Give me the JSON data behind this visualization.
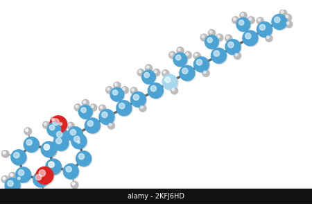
{
  "background_color": "#ffffff",
  "figsize": [
    4.5,
    3.07
  ],
  "dpi": 100,
  "carbon_color": "#4BA3D3",
  "oxygen_color": "#DD2222",
  "hydrogen_color": "#BBBBBB",
  "light_carbon_color": "#A8D8EE",
  "bond_color": "#666666",
  "watermark_text": "alamy - 2KFJ6HD",
  "watermark_color": "#ffffff",
  "watermark_bg": "#111111"
}
